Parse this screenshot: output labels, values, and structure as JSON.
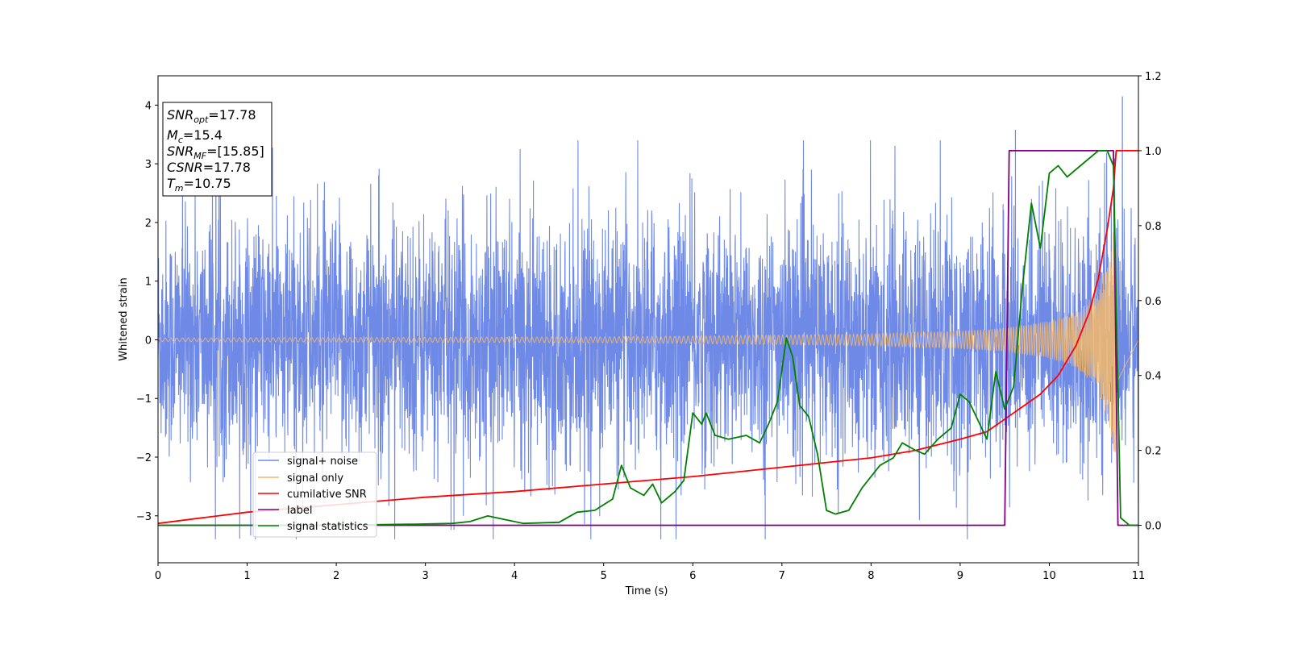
{
  "chart_data": {
    "type": "line",
    "xlabel": "Time (s)",
    "ylabel": "Whitened strain",
    "xlim": [
      0,
      11
    ],
    "ylim": [
      -3.8,
      4.5
    ],
    "y2lim": [
      -0.1,
      1.2
    ],
    "grid": false,
    "legend_position": "lower-left",
    "x_ticks": [
      "0",
      "1",
      "2",
      "3",
      "4",
      "5",
      "6",
      "7",
      "8",
      "9",
      "10",
      "11"
    ],
    "y_ticks": [
      "−3",
      "−2",
      "−1",
      "0",
      "1",
      "2",
      "3",
      "4"
    ],
    "y2_ticks": [
      "0.0",
      "0.2",
      "0.4",
      "0.6",
      "0.8",
      "1.0",
      "1.2"
    ],
    "colors": {
      "signal_noise": "#6f8ae6",
      "signal_only": "#f5b96b",
      "cumulative_snr": "#ff0000",
      "label": "#800080",
      "signal_statistics": "#008000"
    },
    "annotation": {
      "snr_opt": {
        "sym": "SNR",
        "sub": "opt",
        "rest": "=17.78"
      },
      "mc": {
        "sym": "M",
        "sub": "c",
        "rest": "=15.4"
      },
      "snr_mf": {
        "sym": "SNR",
        "sub": "MF",
        "rest": "=[15.85]"
      },
      "csnr": {
        "sym": "CSNR",
        "rest": "=17.78"
      },
      "tm": {
        "sym": "T",
        "sub": "m",
        "rest": "=10.75"
      }
    },
    "series": [
      {
        "name": "signal+ noise",
        "axis": "left",
        "description_values": "noise band approx ±1.5 with spikes to ±3.4; max 4.15 at t≈10.82"
      },
      {
        "name": "signal only",
        "axis": "left",
        "envelope": {
          "x": [
            0,
            5,
            7,
            8,
            9,
            9.5,
            10,
            10.3,
            10.5,
            10.65,
            10.72,
            10.75
          ],
          "amp": [
            0.03,
            0.05,
            0.08,
            0.1,
            0.15,
            0.2,
            0.32,
            0.48,
            0.75,
            1.3,
            1.9,
            2.0
          ]
        }
      },
      {
        "name": "cumilative SNR",
        "axis": "right",
        "x": [
          0,
          0.5,
          1,
          2,
          3,
          4,
          5,
          6,
          7,
          8,
          8.5,
          9,
          9.3,
          9.6,
          9.9,
          10.1,
          10.3,
          10.45,
          10.55,
          10.65,
          10.72,
          10.75,
          11
        ],
        "values": [
          0.005,
          0.02,
          0.035,
          0.055,
          0.075,
          0.09,
          0.11,
          0.13,
          0.155,
          0.18,
          0.2,
          0.23,
          0.25,
          0.3,
          0.35,
          0.4,
          0.48,
          0.57,
          0.66,
          0.79,
          0.9,
          1.0,
          1.0
        ]
      },
      {
        "name": "label",
        "axis": "right",
        "x": [
          0,
          9.5,
          9.55,
          10.72,
          10.77,
          11
        ],
        "values": [
          0,
          0,
          1,
          1,
          0,
          0
        ]
      },
      {
        "name": "signal statistics",
        "axis": "right",
        "x": [
          0,
          1,
          2,
          2.9,
          3.3,
          3.5,
          3.7,
          3.9,
          4.1,
          4.5,
          4.7,
          4.9,
          5.1,
          5.2,
          5.3,
          5.45,
          5.55,
          5.65,
          5.8,
          5.9,
          6.0,
          6.1,
          6.15,
          6.25,
          6.4,
          6.6,
          6.75,
          6.85,
          6.95,
          7.05,
          7.12,
          7.2,
          7.3,
          7.4,
          7.5,
          7.6,
          7.75,
          7.9,
          8.1,
          8.25,
          8.35,
          8.5,
          8.6,
          8.75,
          8.9,
          9.0,
          9.1,
          9.3,
          9.4,
          9.5,
          9.6,
          9.7,
          9.8,
          9.9,
          10.0,
          10.1,
          10.2,
          10.35,
          10.55,
          10.65,
          10.72,
          10.8,
          10.9,
          11.0
        ],
        "values": [
          0,
          0,
          0,
          0.003,
          0.005,
          0.01,
          0.025,
          0.015,
          0.005,
          0.008,
          0.035,
          0.04,
          0.07,
          0.16,
          0.1,
          0.08,
          0.11,
          0.06,
          0.09,
          0.12,
          0.3,
          0.27,
          0.3,
          0.24,
          0.23,
          0.24,
          0.22,
          0.27,
          0.33,
          0.5,
          0.45,
          0.32,
          0.29,
          0.19,
          0.04,
          0.03,
          0.04,
          0.1,
          0.16,
          0.18,
          0.22,
          0.2,
          0.19,
          0.23,
          0.26,
          0.35,
          0.33,
          0.23,
          0.41,
          0.31,
          0.37,
          0.64,
          0.86,
          0.74,
          0.94,
          0.96,
          0.93,
          0.96,
          1.0,
          1.0,
          0.96,
          0.02,
          0.0,
          0.0
        ]
      }
    ]
  }
}
